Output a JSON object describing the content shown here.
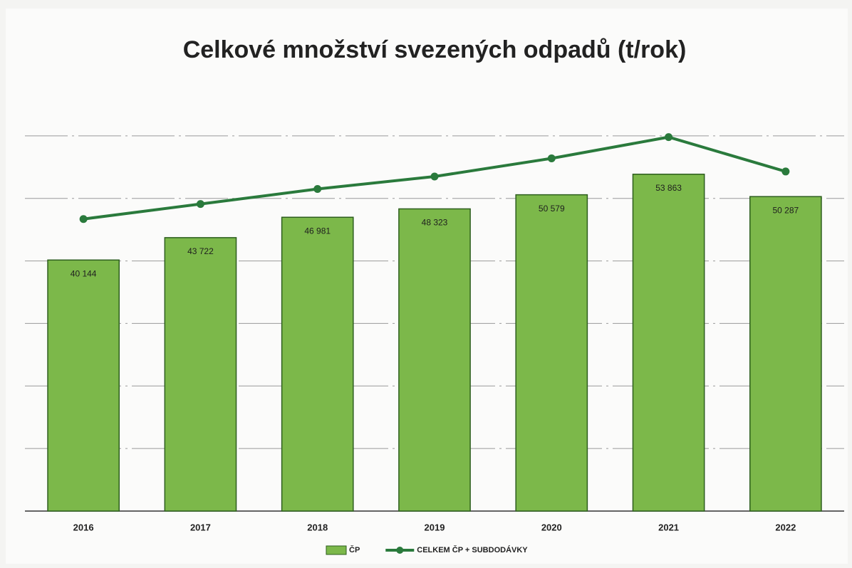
{
  "chart_data": {
    "type": "combo",
    "title": "Celkové množství svezených odpadů (t/rok)",
    "categories": [
      "2016",
      "2017",
      "2018",
      "2019",
      "2020",
      "2021",
      "2022"
    ],
    "series": [
      {
        "name": "ČP",
        "type": "bar",
        "color": "#7cb84a",
        "values": [
          40144,
          43722,
          46981,
          48323,
          50579,
          53863,
          50287
        ],
        "value_labels": [
          "40 144",
          "43 722",
          "46 981",
          "48 323",
          "50 579",
          "53 863",
          "50 287"
        ]
      },
      {
        "name": "CELKEM ČP + SUBDODÁVKY",
        "type": "line",
        "color": "#2a7a3c",
        "values": [
          46700,
          49100,
          51500,
          53500,
          56400,
          59800,
          54300
        ]
      }
    ],
    "ylim": [
      0,
      70000
    ],
    "yticks": [
      0,
      10000,
      20000,
      30000,
      40000,
      50000,
      60000
    ],
    "grid": true,
    "legend": "bottom"
  }
}
